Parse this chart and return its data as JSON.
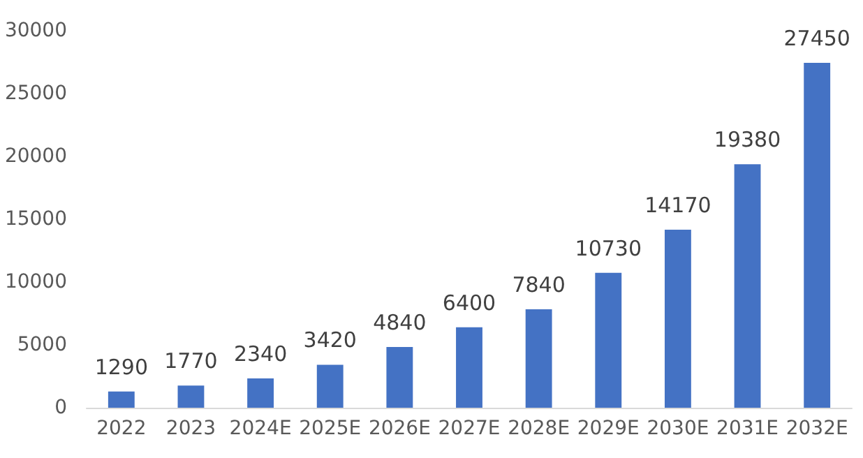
{
  "chart_data": {
    "type": "bar",
    "categories": [
      "2022",
      "2023",
      "2024E",
      "2025E",
      "2026E",
      "2027E",
      "2028E",
      "2029E",
      "2030E",
      "2031E",
      "2032E"
    ],
    "values": [
      1290,
      1770,
      2340,
      3420,
      4840,
      6400,
      7840,
      10730,
      14170,
      19380,
      27450
    ],
    "color": "#4472c4",
    "ylim": [
      0,
      30000
    ],
    "yticks": [
      0,
      5000,
      10000,
      15000,
      20000,
      25000,
      30000
    ],
    "grid": false,
    "data_labels": true
  }
}
